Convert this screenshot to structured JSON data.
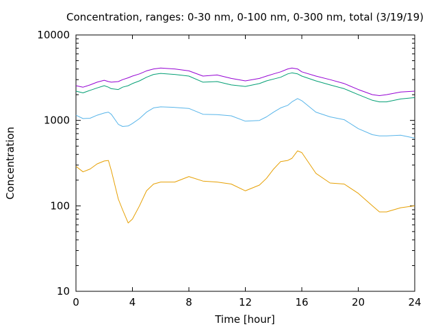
{
  "chart_data": {
    "type": "line",
    "title": "Concentration, ranges: 0-30 nm, 0-100 nm, 0-300 nm, total (3/19/19)",
    "xlabel": "Time [hour]",
    "ylabel": "Concentration",
    "xlim": [
      0,
      24
    ],
    "ylim": [
      10,
      10000
    ],
    "yscale": "log",
    "grid": false,
    "x_ticks": [
      "0",
      "4",
      "8",
      "12",
      "16",
      "20",
      "24"
    ],
    "y_ticks": [
      "10",
      "100",
      "1000",
      "10000"
    ],
    "x": [
      0,
      0.5,
      1,
      1.5,
      2,
      2.3,
      2.5,
      3,
      3.3,
      3.7,
      4,
      4.5,
      5,
      5.5,
      6,
      7,
      8,
      9,
      10,
      11,
      12,
      13,
      13.5,
      14,
      14.5,
      15,
      15.3,
      15.7,
      16,
      17,
      18,
      19,
      20,
      21,
      21.5,
      22,
      23,
      24
    ],
    "series": [
      {
        "color": "#9400d3",
        "values": [
          2550,
          2450,
          2600,
          2800,
          2950,
          2850,
          2800,
          2850,
          3000,
          3150,
          3300,
          3500,
          3800,
          4000,
          4100,
          4000,
          3800,
          3300,
          3400,
          3100,
          2900,
          3100,
          3300,
          3500,
          3700,
          4000,
          4100,
          4000,
          3700,
          3300,
          3000,
          2700,
          2300,
          2000,
          1950,
          2000,
          2150,
          2200
        ]
      },
      {
        "color": "#009e73",
        "values": [
          2200,
          2100,
          2250,
          2400,
          2550,
          2450,
          2350,
          2300,
          2450,
          2550,
          2700,
          2900,
          3200,
          3450,
          3550,
          3450,
          3300,
          2800,
          2850,
          2600,
          2500,
          2700,
          2900,
          3050,
          3200,
          3500,
          3600,
          3500,
          3300,
          2900,
          2600,
          2350,
          2000,
          1720,
          1650,
          1650,
          1780,
          1850
        ]
      },
      {
        "color": "#56b4e9",
        "values": [
          1150,
          1050,
          1060,
          1150,
          1220,
          1250,
          1180,
          900,
          850,
          860,
          920,
          1050,
          1250,
          1400,
          1440,
          1420,
          1380,
          1180,
          1170,
          1130,
          980,
          1000,
          1100,
          1250,
          1400,
          1500,
          1650,
          1800,
          1700,
          1250,
          1100,
          1020,
          800,
          680,
          660,
          660,
          670,
          620
        ]
      },
      {
        "color": "#e69f00",
        "values": [
          290,
          250,
          270,
          310,
          335,
          340,
          260,
          120,
          90,
          63,
          70,
          100,
          150,
          180,
          190,
          190,
          220,
          195,
          190,
          180,
          150,
          175,
          210,
          270,
          330,
          340,
          360,
          440,
          420,
          240,
          185,
          180,
          140,
          100,
          85,
          85,
          95,
          100
        ]
      }
    ]
  }
}
